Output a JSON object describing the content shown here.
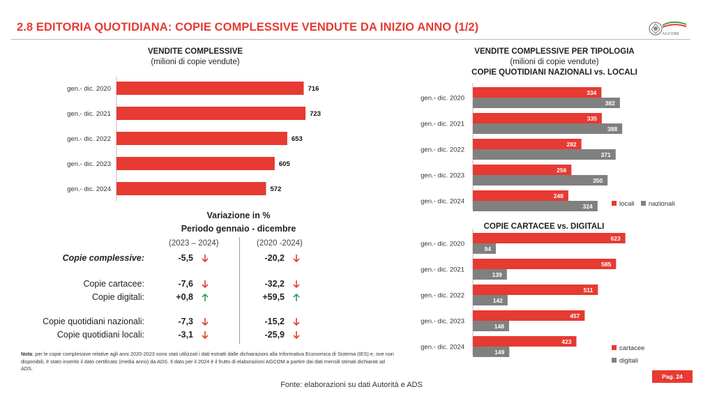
{
  "header": {
    "title": "2.8 EDITORIA QUOTIDIANA: COPIE COMPLESSIVE VENDUTE DA INIZIO ANNO (1/2)",
    "logo_text": "AGCOM"
  },
  "colors": {
    "accent": "#e63a32",
    "grey": "#808080"
  },
  "variation": {
    "title_line1": "Variazione in %",
    "title_line2": "Periodo gennaio - dicembre",
    "col1_header": "(2023 – 2024)",
    "col2_header": "(2020 -2024)",
    "rows": [
      {
        "label": "Copie complessive:",
        "v1": "-5,5",
        "d1": "down",
        "v2": "-20,2",
        "d2": "down"
      },
      {
        "label": "Copie cartacee:",
        "v1": "-7,6",
        "d1": "down",
        "v2": "-32,2",
        "d2": "down"
      },
      {
        "label": "Copie digitali:",
        "v1": "+0,8",
        "d1": "up",
        "v2": "+59,5",
        "d2": "up"
      },
      {
        "label": "Copie quotidiani nazionali:",
        "v1": "-7,3",
        "d1": "down",
        "v2": "-15,2",
        "d2": "down"
      },
      {
        "label": "Copie quotidiani locali:",
        "v1": "-3,1",
        "d1": "down",
        "v2": "-25,9",
        "d2": "down"
      }
    ]
  },
  "note": {
    "label": "Nota",
    "text": ": per le copie complessive relative agli anni 2020-2023 sono stati utilizzati i dati estratti dalle dichiarazioni alla Informativa Economica di Sistema (IES) e, ove non disponibili, è stato inserito il dato certificato (media anno) da ADS. Il dato per il 2024 è il frutto di elaborazioni AGCOM a partire dai dati mensili stimati dichiarati ad ADS."
  },
  "footer": {
    "source": "Fonte: elaborazioni su dati Autorità e ADS",
    "page": "Pag. 24"
  },
  "chart_data": [
    {
      "type": "bar",
      "orientation": "horizontal",
      "title": "VENDITE COMPLESSIVE",
      "subtitle": "(milioni di copie vendute)",
      "categories": [
        "gen.- dic. 2020",
        "gen.- dic. 2021",
        "gen.- dic. 2022",
        "gen.- dic. 2023",
        "gen.- dic. 2024"
      ],
      "series": [
        {
          "values": [
            716,
            723,
            653,
            605,
            572
          ],
          "color": "#e63a32"
        }
      ],
      "xlim": [
        0,
        800
      ],
      "grid": false
    },
    {
      "type": "bar",
      "orientation": "horizontal",
      "title": "VENDITE COMPLESSIVE PER TIPOLOGIA",
      "subtitle": "(milioni di copie vendute)",
      "title2": "COPIE QUOTIDIANI NAZIONALI vs. LOCALI",
      "categories": [
        "gen.- dic. 2020",
        "gen.- dic. 2021",
        "gen.- dic. 2022",
        "gen.- dic. 2023",
        "gen.- dic. 2024"
      ],
      "series": [
        {
          "name": "locali",
          "values": [
            334,
            335,
            282,
            256,
            248
          ],
          "color": "#e63a32"
        },
        {
          "name": "nazionali",
          "values": [
            382,
            388,
            371,
            350,
            324
          ],
          "color": "#808080"
        }
      ],
      "legend": "bottom-right",
      "xlim": [
        0,
        400
      ],
      "grid": false
    },
    {
      "type": "bar",
      "orientation": "horizontal",
      "title": "COPIE CARTACEE vs. DIGITALI",
      "categories": [
        "gen.- dic. 2020",
        "gen.- dic. 2021",
        "gen.- dic. 2022",
        "gen.- dic. 2023",
        "gen.- dic. 2024"
      ],
      "series": [
        {
          "name": "cartacee",
          "values": [
            623,
            585,
            511,
            457,
            423
          ],
          "color": "#e63a32"
        },
        {
          "name": "digitali",
          "values": [
            94,
            139,
            142,
            148,
            149
          ],
          "color": "#808080"
        }
      ],
      "legend": "bottom-right",
      "xlim": [
        0,
        650
      ],
      "grid": false
    }
  ]
}
